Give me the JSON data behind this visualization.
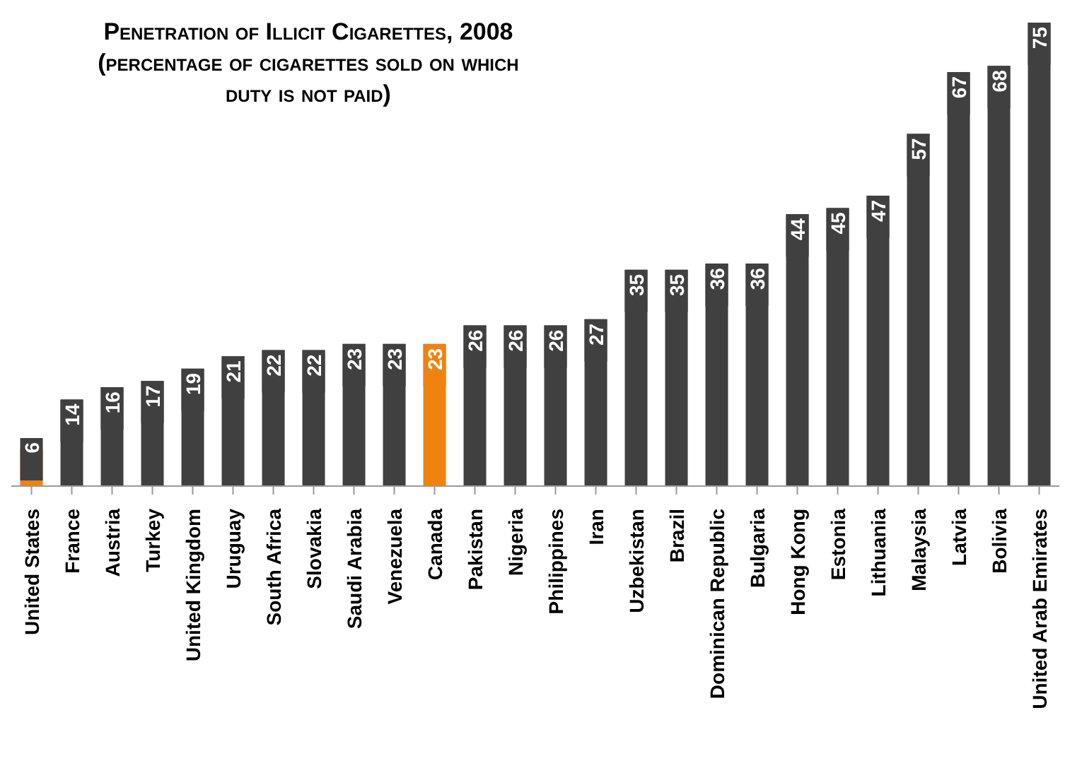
{
  "chart_data": {
    "type": "bar",
    "title": "Penetration of Illicit Cigarettes, 2008",
    "subtitle": "(percentage of cigarettes sold on which duty is not paid)",
    "categories": [
      "United States",
      "France",
      "Austria",
      "Turkey",
      "United Kingdom",
      "Uruguay",
      "South Africa",
      "Slovakia",
      "Saudi Arabia",
      "Venezuela",
      "Canada",
      "Pakistan",
      "Nigeria",
      "Philippines",
      "Iran",
      "Uzbekistan",
      "Brazil",
      "Dominican Republic",
      "Bulgaria",
      "Hong Kong",
      "Estonia",
      "Lithuania",
      "Malaysia",
      "Latvia",
      "Bolivia",
      "United Arab Emirates"
    ],
    "values": [
      6,
      14,
      16,
      17,
      19,
      21,
      22,
      22,
      23,
      23,
      23,
      26,
      26,
      26,
      27,
      35,
      35,
      36,
      36,
      44,
      45,
      47,
      57,
      67,
      68,
      75
    ],
    "colors": [
      "#f0820f",
      "#404040",
      "#404040",
      "#404040",
      "#404040",
      "#404040",
      "#404040",
      "#404040",
      "#404040",
      "#404040",
      "#f0820f",
      "#404040",
      "#404040",
      "#404040",
      "#404040",
      "#404040",
      "#404040",
      "#404040",
      "#404040",
      "#404040",
      "#404040",
      "#404040",
      "#404040",
      "#404040",
      "#404040",
      "#404040"
    ],
    "data_labels": true
  }
}
